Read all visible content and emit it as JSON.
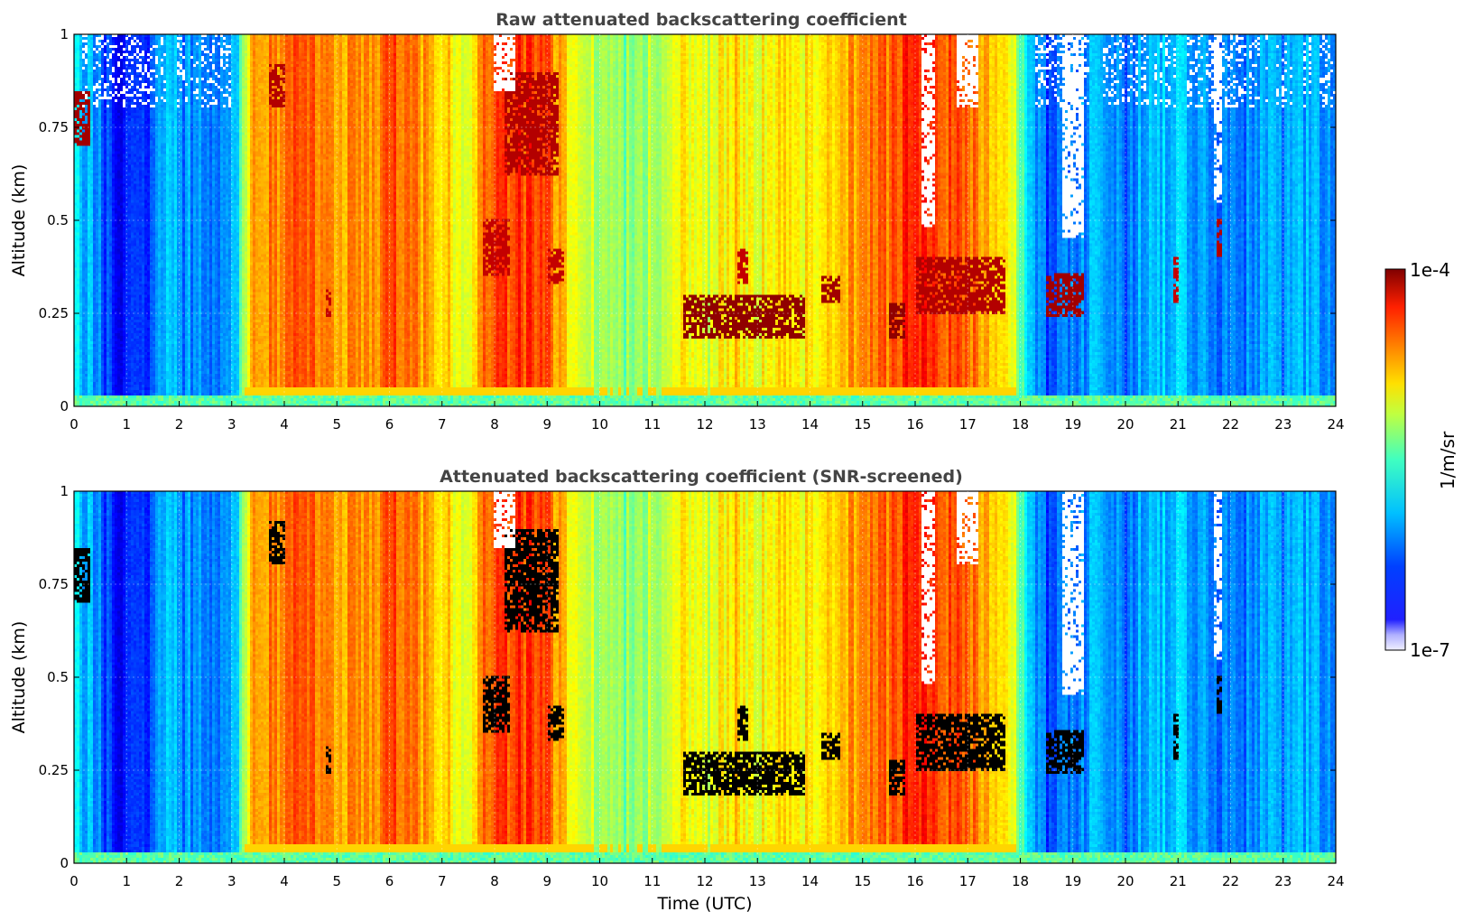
{
  "chart_data": [
    {
      "type": "heatmap",
      "title": "Raw attenuated backscattering coefficient",
      "xlabel": "",
      "ylabel": "Altitude (km)",
      "xlim": [
        0,
        24
      ],
      "ylim": [
        0,
        1
      ],
      "x_ticks": [
        "0",
        "1",
        "2",
        "3",
        "4",
        "5",
        "6",
        "7",
        "8",
        "9",
        "10",
        "11",
        "12",
        "13",
        "14",
        "15",
        "16",
        "17",
        "18",
        "19",
        "20",
        "21",
        "22",
        "23",
        "24"
      ],
      "y_ticks": [
        "0",
        "0.25",
        "0.5",
        "0.75",
        "1"
      ],
      "screened": false
    },
    {
      "type": "heatmap",
      "title": "Attenuated backscattering coefficient (SNR-screened)",
      "xlabel": "Time (UTC)",
      "ylabel": "Altitude (km)",
      "xlim": [
        0,
        24
      ],
      "ylim": [
        0,
        1
      ],
      "x_ticks": [
        "0",
        "1",
        "2",
        "3",
        "4",
        "5",
        "6",
        "7",
        "8",
        "9",
        "10",
        "11",
        "12",
        "13",
        "14",
        "15",
        "16",
        "17",
        "18",
        "19",
        "20",
        "21",
        "22",
        "23",
        "24"
      ],
      "y_ticks": [
        "0",
        "0.25",
        "0.5",
        "0.75",
        "1"
      ],
      "screened": true
    }
  ],
  "colorbar": {
    "max_label": "1e-4",
    "min_label": "1e-7",
    "unit_label": "1/m/sr",
    "scale": "log",
    "range": [
      1e-07,
      0.0001
    ],
    "colormap": "jet"
  },
  "profile": {
    "time_utc": [
      0,
      0.5,
      0.8,
      1.0,
      1.5,
      1.8,
      2.0,
      2.4,
      2.8,
      3.1,
      3.3,
      3.8,
      4.5,
      5.0,
      5.3,
      5.5,
      6.0,
      6.5,
      7.0,
      7.5,
      7.8,
      8.0,
      8.5,
      9.0,
      9.5,
      10.0,
      10.5,
      11.0,
      11.5,
      12.0,
      12.5,
      13.0,
      13.5,
      14.0,
      14.5,
      15.0,
      15.5,
      16.0,
      16.5,
      17.0,
      17.5,
      17.9,
      18.1,
      18.5,
      19.0,
      19.5,
      20.0,
      20.5,
      21.0,
      21.5,
      22.0,
      22.5,
      23.0,
      23.5,
      24.0
    ],
    "log10_intensity": [
      -5.9,
      -6.3,
      -6.6,
      -6.5,
      -6.4,
      -5.9,
      -6.3,
      -6.1,
      -6.3,
      -6.0,
      -5.0,
      -4.75,
      -4.65,
      -4.95,
      -4.75,
      -4.9,
      -4.6,
      -4.8,
      -5.0,
      -5.15,
      -4.7,
      -4.6,
      -4.55,
      -4.6,
      -5.2,
      -5.4,
      -5.5,
      -5.35,
      -5.1,
      -5.3,
      -5.0,
      -5.15,
      -5.0,
      -5.1,
      -4.9,
      -4.75,
      -4.7,
      -4.4,
      -4.6,
      -4.7,
      -4.9,
      -5.3,
      -5.9,
      -6.4,
      -6.3,
      -6.1,
      -6.3,
      -6.0,
      -6.1,
      -6.2,
      -6.3,
      -6.2,
      -6.2,
      -6.1,
      -6.3
    ]
  },
  "features": {
    "cloud_cores": [
      {
        "t0": 11.6,
        "t1": 13.9,
        "alt0": 0.18,
        "alt1": 0.3,
        "log10": -4.05
      },
      {
        "t0": 14.2,
        "t1": 14.6,
        "alt0": 0.28,
        "alt1": 0.35,
        "log10": -4.1
      },
      {
        "t0": 15.5,
        "t1": 15.8,
        "alt0": 0.18,
        "alt1": 0.28,
        "log10": -4.05
      },
      {
        "t0": 16.0,
        "t1": 17.7,
        "alt0": 0.25,
        "alt1": 0.4,
        "log10": -4.15
      },
      {
        "t0": 18.5,
        "t1": 19.2,
        "alt0": 0.24,
        "alt1": 0.36,
        "log10": -4.1
      },
      {
        "t0": 7.8,
        "t1": 8.3,
        "alt0": 0.35,
        "alt1": 0.5,
        "log10": -4.2
      },
      {
        "t0": 8.2,
        "t1": 9.2,
        "alt0": 0.62,
        "alt1": 0.9,
        "log10": -4.15
      },
      {
        "t0": 9.0,
        "t1": 9.3,
        "alt0": 0.33,
        "alt1": 0.42,
        "log10": -4.2
      },
      {
        "t0": 3.7,
        "t1": 4.0,
        "alt0": 0.8,
        "alt1": 0.92,
        "log10": -4.15
      },
      {
        "t0": 0.0,
        "t1": 0.3,
        "alt0": 0.7,
        "alt1": 0.85,
        "log10": -4.1
      },
      {
        "t0": 4.8,
        "t1": 4.9,
        "alt0": 0.24,
        "alt1": 0.32,
        "log10": -4.2
      },
      {
        "t0": 21.75,
        "t1": 21.85,
        "alt0": 0.4,
        "alt1": 0.5,
        "log10": -4.15
      },
      {
        "t0": 20.9,
        "t1": 21.0,
        "alt0": 0.28,
        "alt1": 0.4,
        "log10": -4.2
      },
      {
        "t0": 12.6,
        "t1": 12.8,
        "alt0": 0.33,
        "alt1": 0.42,
        "log10": -4.2
      }
    ],
    "gaps": [
      {
        "t0": 18.8,
        "t1": 19.2,
        "alt0": 0.45,
        "alt1": 1.0
      },
      {
        "t0": 16.1,
        "t1": 16.4,
        "alt0": 0.48,
        "alt1": 1.0
      },
      {
        "t0": 16.8,
        "t1": 17.2,
        "alt0": 0.8,
        "alt1": 1.0
      },
      {
        "t0": 8.0,
        "t1": 8.4,
        "alt0": 0.85,
        "alt1": 1.0
      },
      {
        "t0": 21.7,
        "t1": 21.85,
        "alt0": 0.55,
        "alt1": 1.0
      }
    ]
  }
}
